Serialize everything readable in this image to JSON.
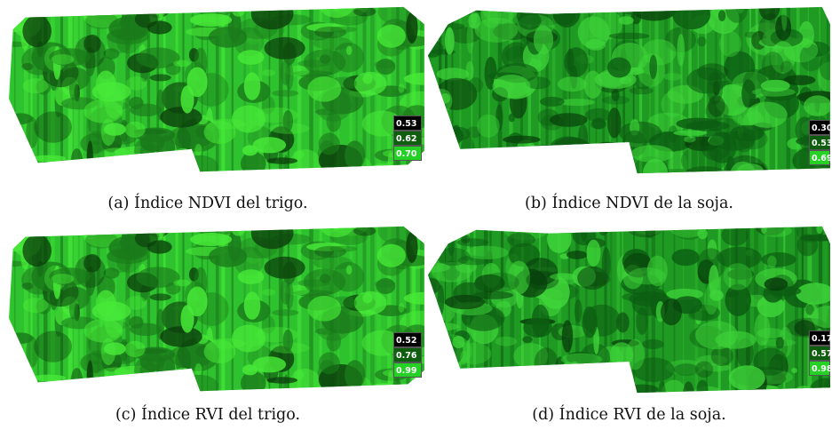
{
  "figures": [
    {
      "id": "a",
      "caption": "(a) Índice NDVI del trigo.",
      "legend": [
        "0.53",
        "0.62",
        "0.70"
      ],
      "legend_colors": [
        "#000000",
        "#0f5d0f",
        "#25d125"
      ],
      "palette": {
        "base": "#2fc22f",
        "dark": "#1a7a1a",
        "light": "#48ea38",
        "shadow": "#0b3d0b"
      }
    },
    {
      "id": "b",
      "caption": "(b) Índice NDVI de la soja.",
      "legend": [
        "0.30",
        "0.53",
        "0.69"
      ],
      "legend_colors": [
        "#000000",
        "#0f5d0f",
        "#25d125"
      ],
      "palette": {
        "base": "#1f9a22",
        "dark": "#0c5d12",
        "light": "#3fd53a",
        "shadow": "#083d0b"
      }
    },
    {
      "id": "c",
      "caption": "(c) Índice RVI del trigo.",
      "legend": [
        "0.52",
        "0.76",
        "0.99"
      ],
      "legend_colors": [
        "#000000",
        "#0f5d0f",
        "#25d125"
      ],
      "palette": {
        "base": "#2fc22f",
        "dark": "#1a7a1a",
        "light": "#48ea38",
        "shadow": "#0b3d0b"
      }
    },
    {
      "id": "d",
      "caption": "(d) Índice RVI de la soja.",
      "legend": [
        "0.17",
        "0.57",
        "0.98"
      ],
      "legend_colors": [
        "#000000",
        "#0f5d0f",
        "#25d125"
      ],
      "palette": {
        "base": "#1f9a22",
        "dark": "#0c5d12",
        "light": "#3fd53a",
        "shadow": "#083d0b"
      }
    }
  ]
}
